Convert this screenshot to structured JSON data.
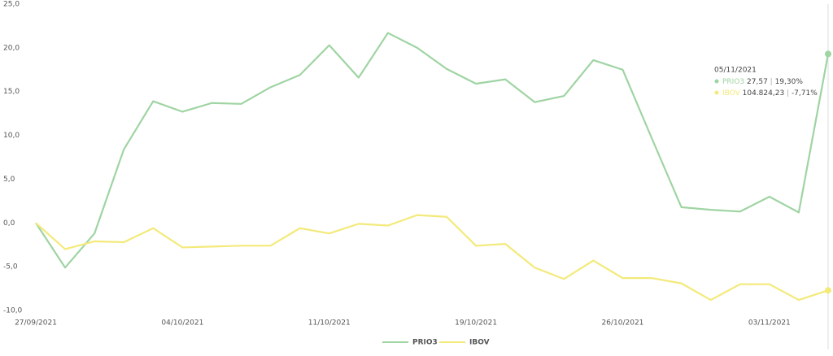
{
  "chart_data": {
    "type": "line",
    "categories": [
      "27/09/2021",
      null,
      null,
      null,
      null,
      "04/10/2021",
      null,
      null,
      null,
      null,
      "11/10/2021",
      null,
      null,
      null,
      null,
      "19/10/2021",
      null,
      null,
      null,
      null,
      "26/10/2021",
      null,
      null,
      null,
      null,
      "03/11/2021",
      null,
      null
    ],
    "series": [
      {
        "name": "PRIO3",
        "color": "#9fd4a3",
        "values": [
          0,
          -5.1,
          -1.2,
          8.4,
          13.9,
          12.7,
          13.7,
          13.6,
          15.5,
          16.9,
          20.3,
          16.6,
          21.7,
          20.0,
          17.6,
          15.9,
          16.4,
          13.8,
          14.5,
          18.6,
          17.5,
          9.6,
          1.8,
          1.5,
          1.3,
          3.0,
          1.2,
          19.3
        ]
      },
      {
        "name": "IBOV",
        "color": "#f3ea7a",
        "values": [
          0,
          -3.0,
          -2.1,
          -2.2,
          -0.6,
          -2.8,
          -2.7,
          -2.6,
          -2.6,
          -0.6,
          -1.2,
          -0.1,
          -0.3,
          0.9,
          0.7,
          -2.6,
          -2.4,
          -5.1,
          -6.4,
          -4.3,
          -6.3,
          -6.3,
          -6.9,
          -8.8,
          -7.0,
          -7.0,
          -8.8,
          -7.7
        ]
      }
    ],
    "ylim": [
      -10,
      25
    ],
    "yticks": [
      {
        "value": -10,
        "label": "-10,0"
      },
      {
        "value": -5,
        "label": "-5,0"
      },
      {
        "value": 0,
        "label": "0,0"
      },
      {
        "value": 5,
        "label": "5,0"
      },
      {
        "value": 10,
        "label": "10,0"
      },
      {
        "value": 15,
        "label": "15,0"
      },
      {
        "value": 20,
        "label": "20,0"
      },
      {
        "value": 25,
        "label": "25,0"
      }
    ],
    "grid": false,
    "legend": "bottom",
    "tooltip": {
      "date": "05/11/2021",
      "items": [
        {
          "price": "27,57",
          "change": "19,30%"
        },
        {
          "price": "104.824,23",
          "change": "-7,71%"
        }
      ]
    }
  }
}
